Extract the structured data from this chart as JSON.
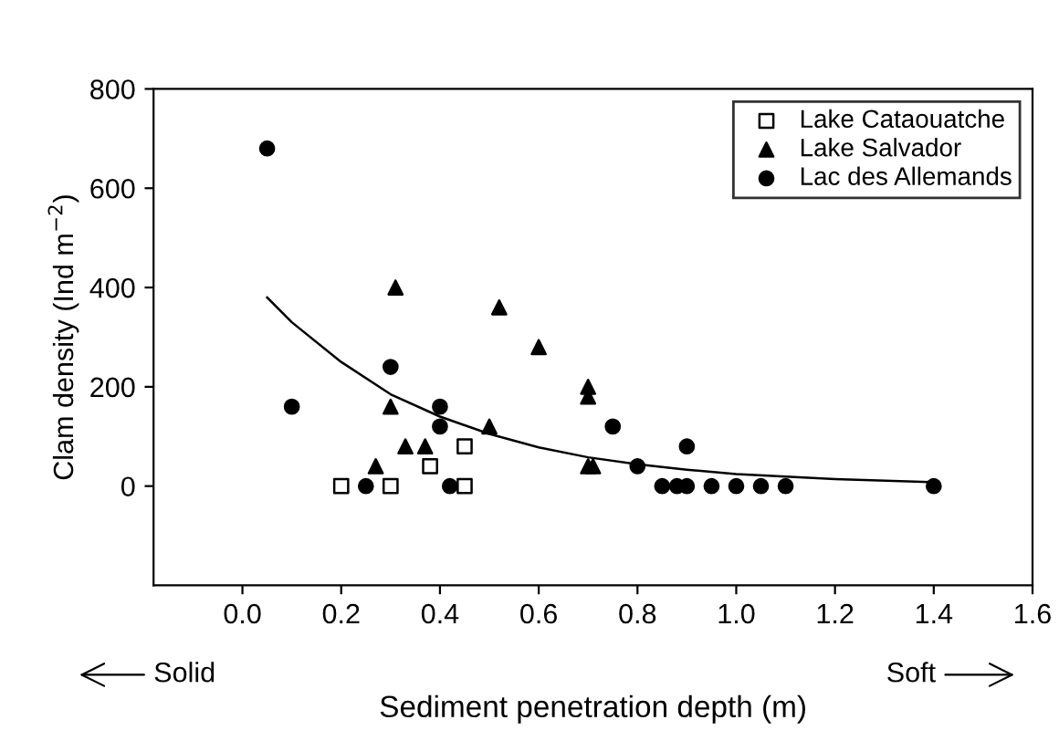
{
  "chart_data": {
    "type": "scatter",
    "xlabel": "Sediment penetration depth (m)",
    "ylabel": "Clam density (Ind m$^{−2}$)",
    "xlim": [
      -0.18,
      1.6
    ],
    "ylim": [
      -200,
      800
    ],
    "xticks": [
      {
        "value": 0,
        "label": "0.0"
      },
      0.2,
      0.4,
      0.6,
      0.8,
      {
        "value": 1,
        "label": "1.0"
      },
      1.2,
      1.4,
      1.6
    ],
    "yticks": [
      0,
      200,
      400,
      600,
      800
    ],
    "legend": "top right",
    "annotations": [
      "Solid",
      "Soft"
    ],
    "series": [
      {
        "name": "Lake Cataouatche",
        "marker": "square",
        "color": "#ffffff",
        "x": [
          0.2,
          0.3,
          0.38,
          0.45,
          0.45
        ],
        "values": [
          0,
          0,
          40,
          80,
          0
        ]
      },
      {
        "name": "Lake Salvador",
        "marker": "triangle",
        "color": "#000000",
        "x": [
          0.27,
          0.3,
          0.31,
          0.33,
          0.37,
          0.5,
          0.52,
          0.6,
          0.7,
          0.7,
          0.7,
          0.71
        ],
        "values": [
          40,
          160,
          400,
          80,
          80,
          120,
          360,
          280,
          200,
          180,
          40,
          40
        ]
      },
      {
        "name": "Lac des Allemands",
        "marker": "circle",
        "color": "#000000",
        "x": [
          0.05,
          0.1,
          0.25,
          0.3,
          0.4,
          0.4,
          0.42,
          0.75,
          0.8,
          0.85,
          0.88,
          0.9,
          0.9,
          0.95,
          1.0,
          1.05,
          1.1,
          1.4
        ],
        "values": [
          680,
          160,
          0,
          240,
          160,
          120,
          0,
          120,
          40,
          0,
          0,
          0,
          80,
          0,
          0,
          0,
          0,
          0
        ]
      },
      {
        "type": "line",
        "marker": "none",
        "color": "#000000",
        "x": [
          0.05,
          0.1,
          0.2,
          0.3,
          0.4,
          0.5,
          0.6,
          0.7,
          0.8,
          0.9,
          1.0,
          1.2,
          1.4
        ],
        "values": [
          380,
          330,
          250,
          185,
          140,
          105,
          78,
          58,
          44,
          33,
          24,
          14,
          8
        ]
      }
    ]
  }
}
